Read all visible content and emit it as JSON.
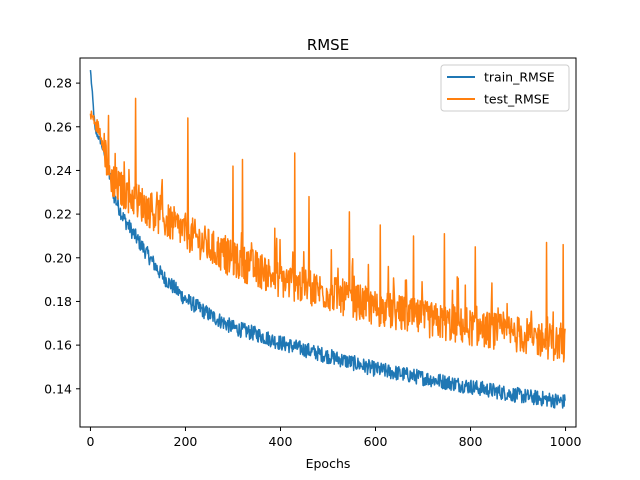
{
  "chart_data": {
    "type": "line",
    "title": "RMSE",
    "xlabel": "Epochs",
    "ylabel": "",
    "xlim": [
      -22,
      1022
    ],
    "ylim": [
      0.1225,
      0.2915
    ],
    "xticks": [
      0,
      200,
      400,
      600,
      800,
      1000
    ],
    "yticks": [
      0.14,
      0.16,
      0.18,
      0.2,
      0.22,
      0.24,
      0.26,
      0.28
    ],
    "ytick_labels": [
      "0.14",
      "0.16",
      "0.18",
      "0.20",
      "0.22",
      "0.24",
      "0.26",
      "0.28"
    ],
    "xtick_labels": [
      "0",
      "200",
      "400",
      "600",
      "800",
      "1000"
    ],
    "legend_position": "top-right",
    "grid": false,
    "n_points": 1000,
    "series": [
      {
        "name": "train_RMSE",
        "color": "#1f77b4",
        "anchors_x": [
          0,
          10,
          20,
          30,
          40,
          50,
          70,
          100,
          150,
          200,
          250,
          300,
          350,
          400,
          500,
          600,
          700,
          800,
          900,
          1000
        ],
        "anchors_y": [
          0.286,
          0.258,
          0.254,
          0.247,
          0.238,
          0.228,
          0.218,
          0.208,
          0.192,
          0.181,
          0.174,
          0.168,
          0.165,
          0.161,
          0.155,
          0.149,
          0.145,
          0.141,
          0.137,
          0.134
        ],
        "noise": 0.0035
      },
      {
        "name": "test_RMSE",
        "color": "#ff7f0e",
        "anchors_x": [
          0,
          10,
          20,
          30,
          40,
          60,
          100,
          150,
          200,
          250,
          300,
          350,
          400,
          500,
          600,
          700,
          800,
          900,
          1000
        ],
        "anchors_y": [
          0.266,
          0.262,
          0.258,
          0.25,
          0.238,
          0.232,
          0.226,
          0.218,
          0.212,
          0.205,
          0.199,
          0.195,
          0.19,
          0.184,
          0.177,
          0.172,
          0.168,
          0.165,
          0.16
        ],
        "noise": 0.0085,
        "spikes": [
          [
            95,
            0.273
          ],
          [
            205,
            0.264
          ],
          [
            320,
            0.245
          ],
          [
            300,
            0.242
          ],
          [
            430,
            0.248
          ],
          [
            460,
            0.228
          ],
          [
            545,
            0.221
          ],
          [
            610,
            0.215
          ],
          [
            680,
            0.21
          ],
          [
            745,
            0.211
          ],
          [
            810,
            0.205
          ],
          [
            960,
            0.207
          ],
          [
            995,
            0.206
          ]
        ]
      }
    ]
  }
}
